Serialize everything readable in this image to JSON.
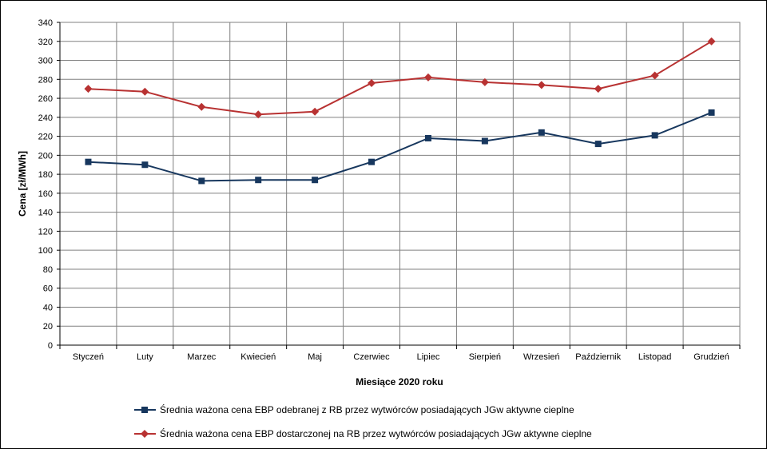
{
  "chart_data": {
    "type": "line",
    "categories": [
      "Styczeń",
      "Luty",
      "Marzec",
      "Kwiecień",
      "Maj",
      "Czerwiec",
      "Lipiec",
      "Sierpień",
      "Wrzesień",
      "Październik",
      "Listopad",
      "Grudzień"
    ],
    "series": [
      {
        "name": "Średnia ważona cena EBP odebranej z RB przez wytwórców posiadających JGw aktywne cieplne",
        "values": [
          193,
          190,
          173,
          174,
          174,
          193,
          218,
          215,
          224,
          212,
          221,
          245
        ],
        "color": "#17375e",
        "marker": "square"
      },
      {
        "name": "Średnia ważona cena EBP dostarczonej na RB przez wytwórców posiadających JGw aktywne cieplne",
        "values": [
          270,
          267,
          251,
          243,
          246,
          276,
          282,
          277,
          274,
          270,
          284,
          320
        ],
        "color": "#b83232",
        "marker": "diamond"
      }
    ],
    "xlabel": "Miesiące 2020  roku",
    "ylabel": "Cena [zł/MWh]",
    "ylim": [
      0,
      340
    ],
    "ytick_step": 20,
    "grid": true,
    "legend_position": "bottom"
  }
}
